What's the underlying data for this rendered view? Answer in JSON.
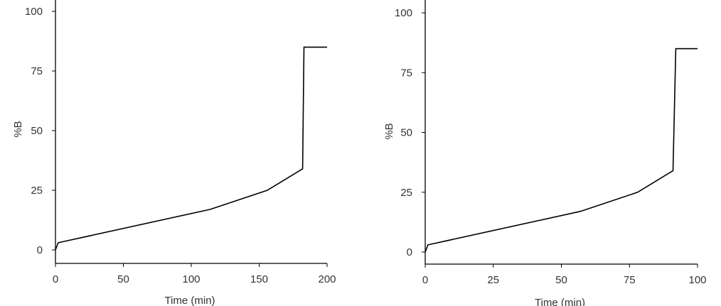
{
  "chart_data": [
    {
      "type": "line",
      "xlabel": "Time (min)",
      "ylabel": "%B",
      "xlim": [
        0,
        200
      ],
      "ylim": [
        0,
        100
      ],
      "xticks": [
        "0",
        "50",
        "100",
        "150",
        "200"
      ],
      "yticks": [
        "0",
        "25",
        "50",
        "75",
        "100"
      ],
      "grid": false,
      "series": [
        {
          "x": [
            0,
            2,
            114,
            156,
            182,
            183,
            200
          ],
          "y": [
            0,
            3,
            17,
            25,
            34,
            85,
            85
          ]
        }
      ]
    },
    {
      "type": "line",
      "xlabel": "Time (min)",
      "ylabel": "%B",
      "xlim": [
        0,
        100
      ],
      "ylim": [
        0,
        100
      ],
      "xticks": [
        "0",
        "25",
        "50",
        "75",
        "100"
      ],
      "yticks": [
        "0",
        "25",
        "50",
        "75",
        "100"
      ],
      "grid": false,
      "series": [
        {
          "x": [
            0,
            1,
            57,
            78,
            91,
            92,
            100
          ],
          "y": [
            0,
            3,
            17,
            25,
            34,
            85,
            85
          ]
        }
      ]
    }
  ]
}
